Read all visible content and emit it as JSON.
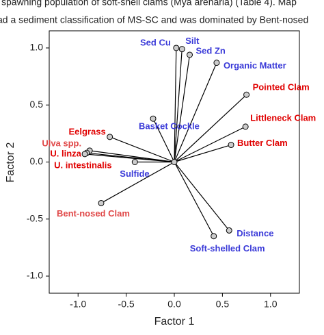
{
  "header_lines": [
    "spawning population of soft-shell clams (Mya arenaria) (Table 4). Map",
    "ad a sediment classification of MS-SC and was dominated by Bent-nosed"
  ],
  "chart_data": {
    "type": "biplot",
    "xlabel": "Factor 1",
    "ylabel": "Factor 2",
    "xlim": [
      -1.3,
      1.3
    ],
    "ylim": [
      -1.15,
      1.15
    ],
    "xticks": [
      {
        "value": -1,
        "label": "-1.0"
      },
      {
        "value": -0.5,
        "label": "-0.5"
      },
      {
        "value": 0,
        "label": "0.0"
      },
      {
        "value": 0.5,
        "label": "0.5"
      },
      {
        "value": 1,
        "label": "1.0"
      }
    ],
    "yticks": [
      {
        "value": -1,
        "label": "-1.0"
      },
      {
        "value": -0.5,
        "label": "-0.5"
      },
      {
        "value": 0,
        "label": "0.0"
      },
      {
        "value": 0.5,
        "label": "0.5"
      },
      {
        "value": 1,
        "label": "1.0"
      }
    ],
    "points": [
      {
        "name": "Sed Cu",
        "x": 0.02,
        "y": 1.0,
        "color": "#3a3ad8"
      },
      {
        "name": "Silt",
        "x": 0.08,
        "y": 0.99,
        "color": "#3a3ad8"
      },
      {
        "name": "Sed Zn",
        "x": 0.16,
        "y": 0.94,
        "color": "#3a3ad8"
      },
      {
        "name": "Organic Matter",
        "x": 0.44,
        "y": 0.87,
        "color": "#3a3ad8"
      },
      {
        "name": "Pointed Clam",
        "x": 0.75,
        "y": 0.59,
        "color": "#e00000"
      },
      {
        "name": "Littleneck Clam",
        "x": 0.74,
        "y": 0.31,
        "color": "#e00000"
      },
      {
        "name": "Butter Clam",
        "x": 0.59,
        "y": 0.15,
        "color": "#e00000"
      },
      {
        "name": "Basket Cockle",
        "x": -0.22,
        "y": 0.38,
        "color": "#3a3ad8"
      },
      {
        "name": "Eelgrass",
        "x": -0.67,
        "y": 0.22,
        "color": "#e00000"
      },
      {
        "name": "Ulva spp.",
        "x": -0.88,
        "y": 0.1,
        "color": "#e04848"
      },
      {
        "name": "U. linza",
        "x": -0.91,
        "y": 0.08,
        "color": "#e00000"
      },
      {
        "name": "U. intestinalis",
        "x": -0.93,
        "y": 0.07,
        "color": "#e00000"
      },
      {
        "name": "Sulfide",
        "x": -0.41,
        "y": 0.0,
        "color": "#3a3ad8"
      },
      {
        "name": "Bent-nosed Clam",
        "x": -0.76,
        "y": -0.36,
        "color": "#e04848"
      },
      {
        "name": "Distance",
        "x": 0.57,
        "y": -0.6,
        "color": "#3a3ad8"
      },
      {
        "name": "Soft-shelled Clam",
        "x": 0.41,
        "y": -0.65,
        "color": "#3a3ad8"
      }
    ]
  }
}
